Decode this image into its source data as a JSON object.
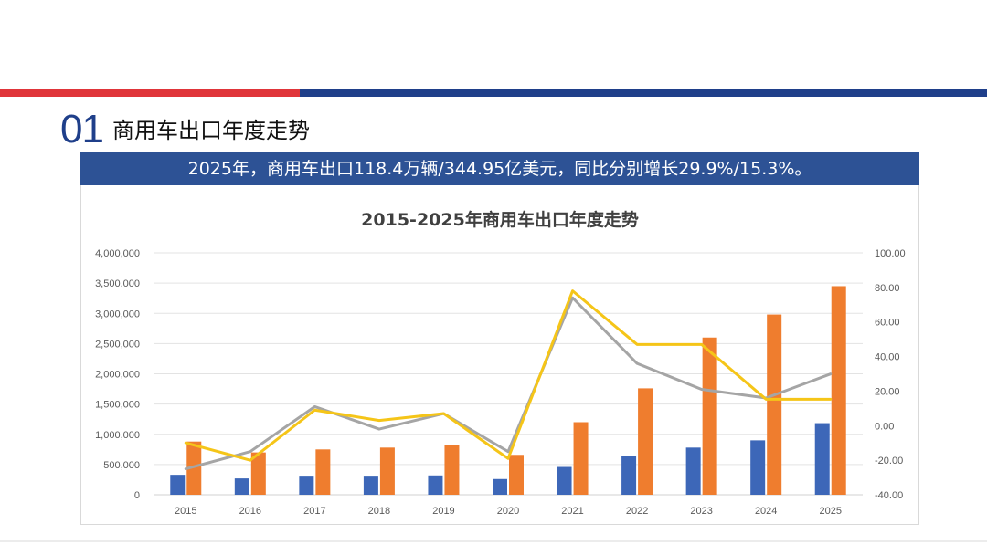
{
  "section": {
    "number": "01",
    "title": "商用车出口年度走势"
  },
  "banner": {
    "text": "2025年，商用车出口118.4万辆/344.95亿美元，同比分别增长29.9%/15.3%。"
  },
  "colors": {
    "red_stripe": "#e0353a",
    "blue_stripe": "#1f3f8a",
    "banner_bg": "#2d5295",
    "volume_bar": "#3d67b8",
    "value_bar": "#ef7d2e",
    "volume_growth_line": "#a5a5a5",
    "value_growth_line": "#f5c518"
  },
  "chart_data": {
    "type": "bar",
    "title": "2015-2025年商用车出口年度走势",
    "categories": [
      "2015",
      "2016",
      "2017",
      "2018",
      "2019",
      "2020",
      "2021",
      "2022",
      "2023",
      "2024",
      "2025"
    ],
    "ylim": [
      0,
      4000000
    ],
    "y_ticks": [
      "0",
      "500,000",
      "1,000,000",
      "1,500,000",
      "2,000,000",
      "2,500,000",
      "3,000,000",
      "3,500,000",
      "4,000,000"
    ],
    "y2lim": [
      -40,
      100
    ],
    "y2_ticks": [
      "-40.00",
      "-20.00",
      "0.00",
      "20.00",
      "40.00",
      "60.00",
      "80.00",
      "100.00"
    ],
    "grid": true,
    "series": [
      {
        "axis": "left",
        "kind": "bar",
        "color": "#3d67b8",
        "values": [
          330000,
          270000,
          300000,
          300000,
          320000,
          260000,
          460000,
          640000,
          780000,
          900000,
          1184000
        ]
      },
      {
        "axis": "left",
        "kind": "bar",
        "color": "#ef7d2e",
        "values": [
          880000,
          700000,
          750000,
          780000,
          820000,
          660000,
          1200000,
          1760000,
          2600000,
          2980000,
          3449500
        ]
      },
      {
        "axis": "right",
        "kind": "line",
        "color": "#a5a5a5",
        "values": [
          -25,
          -15,
          11,
          -2,
          7,
          -15,
          74,
          36,
          21,
          16,
          29.9
        ]
      },
      {
        "axis": "right",
        "kind": "line",
        "color": "#f5c518",
        "values": [
          -10,
          -20,
          9,
          3,
          7,
          -19,
          78,
          47,
          47,
          15.3,
          15.3
        ]
      }
    ]
  }
}
